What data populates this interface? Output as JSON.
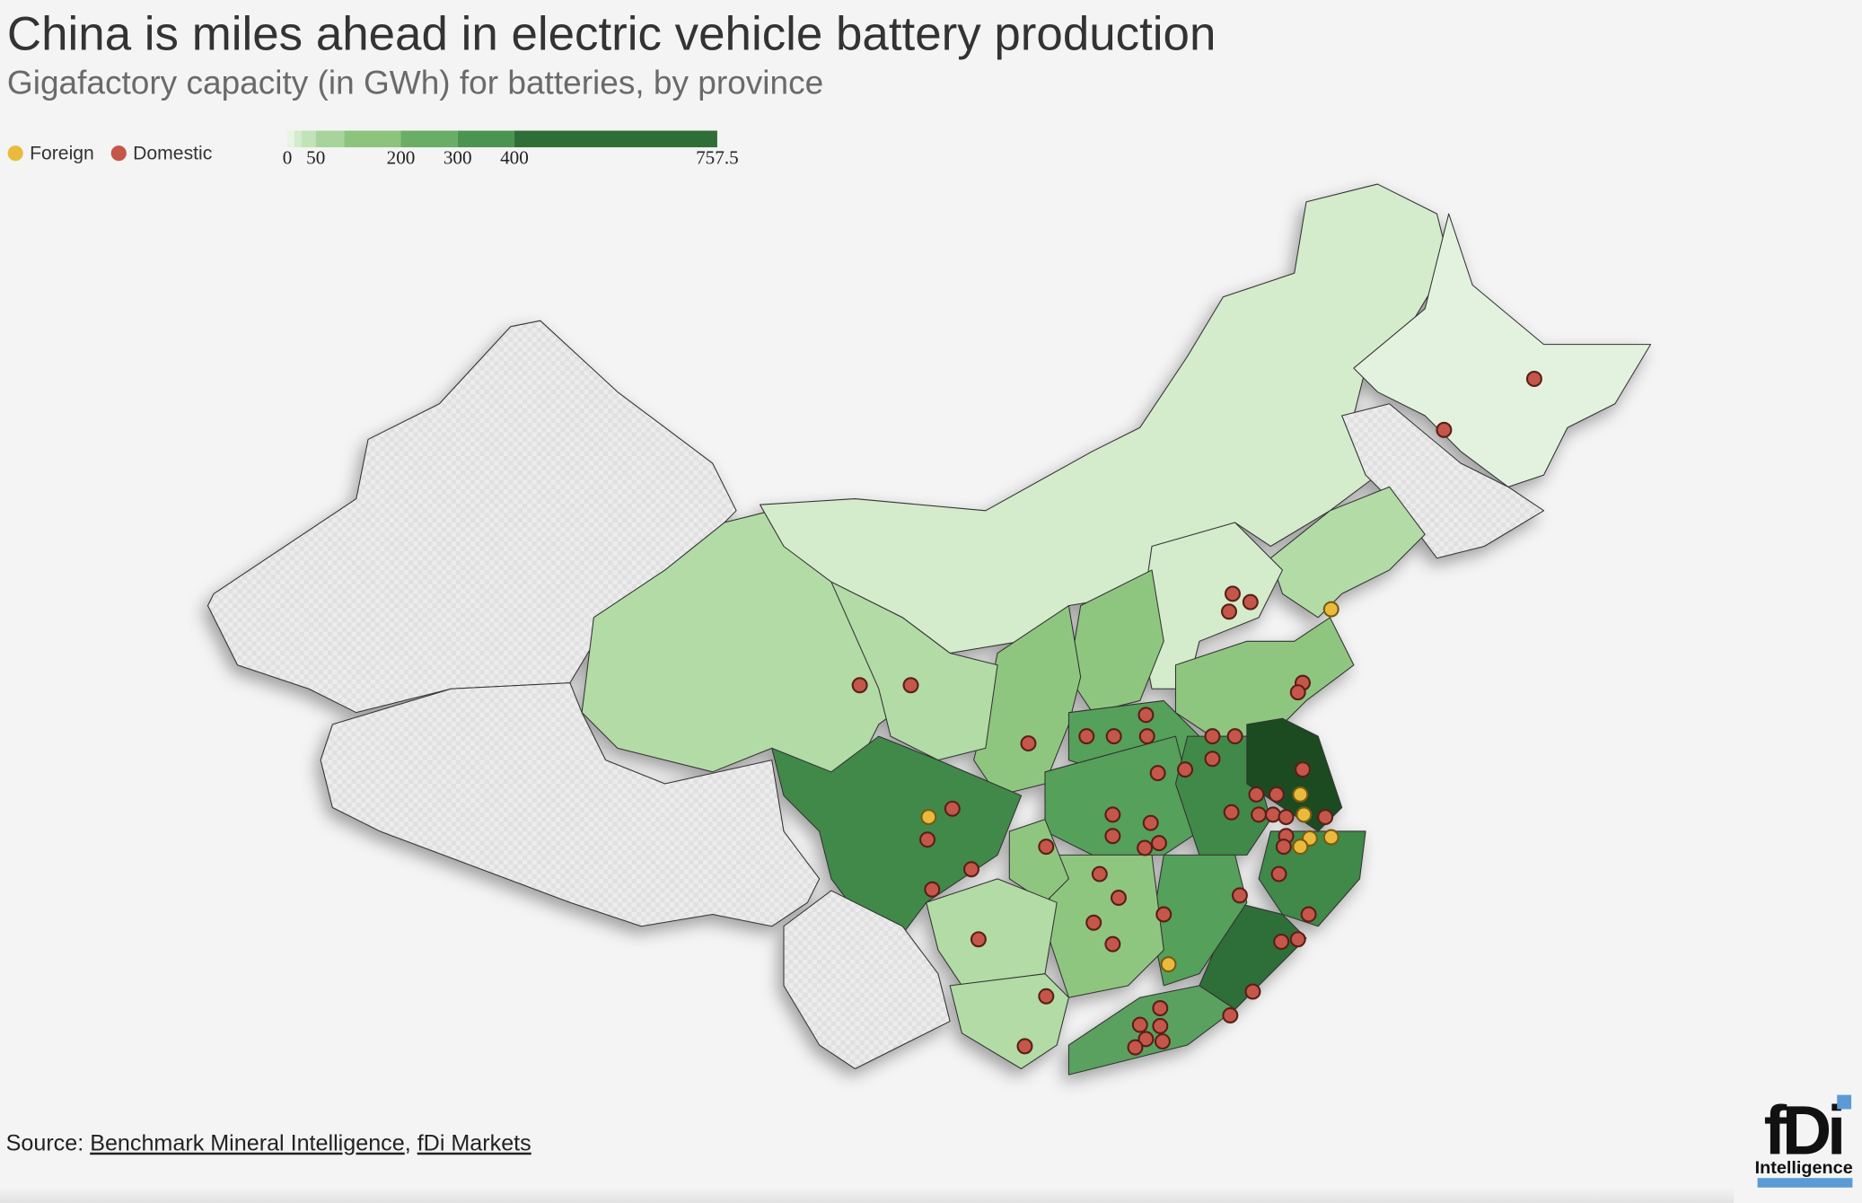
{
  "header": {
    "title": "China is miles ahead in electric vehicle battery production",
    "subtitle": "Gigafactory capacity (in GWh) for batteries, by province"
  },
  "legend": [
    {
      "label": "Foreign",
      "color": "#e9bb3c"
    },
    {
      "label": "Domestic",
      "color": "#c4574a"
    }
  ],
  "color_scale": {
    "bins": [
      0,
      12.5,
      25,
      50,
      100,
      200,
      300,
      400,
      757.5
    ],
    "colors": [
      "#e6f4e1",
      "#d4ebcc",
      "#c2e3b8",
      "#a7d49a",
      "#8cc37d",
      "#6aad66",
      "#4b944f",
      "#2f6e37"
    ],
    "ticks": [
      0,
      50,
      200,
      300,
      400,
      757.5
    ]
  },
  "source": {
    "label": "Source:",
    "links": [
      "Benchmark Mineral Intelligence",
      "fDi Markets"
    ],
    "separator": ","
  },
  "logo": {
    "mark": "fDi",
    "name": "Intelligence"
  }
}
